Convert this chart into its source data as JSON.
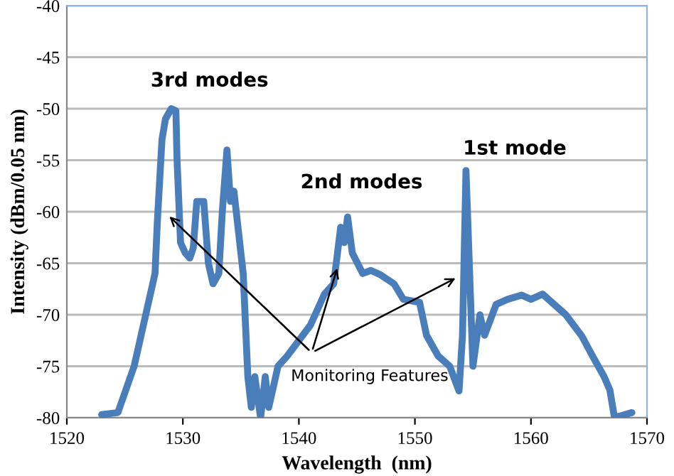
{
  "chart_data": {
    "type": "line",
    "xlabel": "Wavelength  (nm)",
    "ylabel": "Intensity (dBm/0.05 nm)",
    "xlim": [
      1520,
      1570
    ],
    "xticks": [
      1520,
      1530,
      1540,
      1550,
      1560,
      1570
    ],
    "ylim": [
      -80,
      -40
    ],
    "yticks": [
      -80,
      -75,
      -70,
      -65,
      -60,
      -55,
      -50,
      -45,
      -40
    ],
    "grid": "y",
    "legend": false,
    "marker": "none",
    "line_style": "solid",
    "series": [
      {
        "color": "#4a7ebb",
        "x": [
          1523.0,
          1524.4,
          1525.8,
          1526.8,
          1527.6,
          1527.8,
          1528.2,
          1528.5,
          1529.0,
          1529.4,
          1529.5,
          1529.8,
          1530.2,
          1530.6,
          1530.9,
          1531.2,
          1531.8,
          1532.2,
          1532.6,
          1533.1,
          1533.4,
          1533.8,
          1534.1,
          1534.4,
          1534.8,
          1535.2,
          1535.6,
          1535.9,
          1536.2,
          1536.7,
          1537.1,
          1537.4,
          1538.2,
          1539.0,
          1540.0,
          1541.0,
          1542.2,
          1543.0,
          1543.6,
          1543.9,
          1544.2,
          1544.6,
          1545.5,
          1546.2,
          1547.0,
          1548.2,
          1549.0,
          1550.4,
          1551.0,
          1552.0,
          1553.0,
          1553.8,
          1554.1,
          1554.4,
          1555.0,
          1555.6,
          1556.0,
          1557.0,
          1558.0,
          1559.2,
          1560.0,
          1561.0,
          1562.0,
          1563.0,
          1564.4,
          1565.3,
          1566.3,
          1566.8,
          1567.2,
          1568.7
        ],
        "values": [
          -79.7,
          -79.5,
          -75,
          -70,
          -66,
          -61,
          -53,
          -51,
          -50,
          -50.2,
          -55,
          -63,
          -64,
          -64.5,
          -63.5,
          -59,
          -59,
          -65,
          -67,
          -66,
          -60,
          -54,
          -59,
          -58,
          -62,
          -66,
          -76,
          -79,
          -76,
          -80,
          -76,
          -79,
          -75,
          -74,
          -72.5,
          -71,
          -68,
          -67,
          -61.5,
          -63,
          -60.5,
          -64,
          -66,
          -65.7,
          -66.1,
          -67,
          -68.5,
          -68.8,
          -72,
          -74,
          -75,
          -77.4,
          -72,
          -56,
          -75,
          -70,
          -72,
          -69,
          -68.5,
          -68.1,
          -68.5,
          -68,
          -69,
          -70,
          -72.1,
          -74,
          -76,
          -77.3,
          -80,
          -79.5
        ]
      }
    ],
    "annotations": [
      "3rd modes",
      "2nd modes",
      "1st mode",
      {
        "text": "Monitoring Features",
        "x": 1528.6,
        "y": -60.2
      }
    ]
  }
}
